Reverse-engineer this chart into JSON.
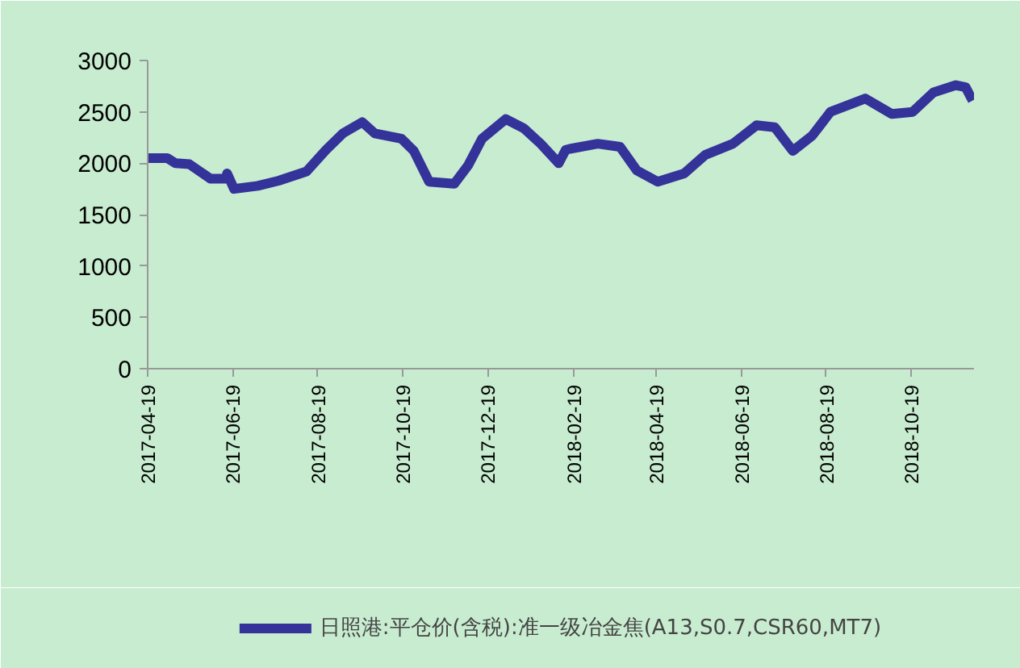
{
  "chart_data": {
    "type": "line",
    "x": [
      "2017-04-19",
      "2017-05-03",
      "2017-05-09",
      "2017-05-19",
      "2017-06-03",
      "2017-06-14",
      "2017-06-15",
      "2017-06-20",
      "2017-07-07",
      "2017-07-22",
      "2017-08-11",
      "2017-08-25",
      "2017-09-06",
      "2017-09-20",
      "2017-09-29",
      "2017-10-18",
      "2017-10-27",
      "2017-11-07",
      "2017-11-25",
      "2017-12-05",
      "2017-12-15",
      "2018-01-01",
      "2018-01-14",
      "2018-01-26",
      "2018-02-08",
      "2018-02-13",
      "2018-02-16",
      "2018-03-08",
      "2018-03-24",
      "2018-04-05",
      "2018-04-20",
      "2018-05-09",
      "2018-05-24",
      "2018-06-13",
      "2018-06-30",
      "2018-07-13",
      "2018-07-26",
      "2018-08-09",
      "2018-08-22",
      "2018-09-16",
      "2018-10-05",
      "2018-10-20",
      "2018-11-04",
      "2018-11-20",
      "2018-11-27",
      "2018-12-02"
    ],
    "series": [
      {
        "name": "日照港:平仓价(含税):准一级冶金焦(A13,S0.7,CSR60,MT7)",
        "color": "#333399",
        "values": [
          2050,
          2050,
          2000,
          1990,
          1850,
          1850,
          1900,
          1750,
          1780,
          1830,
          1920,
          2130,
          2290,
          2400,
          2290,
          2240,
          2120,
          1820,
          1800,
          1980,
          2240,
          2430,
          2340,
          2190,
          2000,
          2130,
          2140,
          2190,
          2160,
          1930,
          1820,
          1900,
          2080,
          2190,
          2370,
          2350,
          2120,
          2270,
          2500,
          2630,
          2480,
          2500,
          2690,
          2760,
          2740,
          2610
        ]
      }
    ],
    "xlim": [
      "2017-04-19",
      "2018-12-03"
    ],
    "xticks": [
      "2017-04-19",
      "2017-06-19",
      "2017-08-19",
      "2017-10-19",
      "2017-12-19",
      "2018-02-19",
      "2018-04-19",
      "2018-06-19",
      "2018-08-19",
      "2018-10-19"
    ],
    "ylim": [
      0,
      3000
    ],
    "yticks": [
      0,
      500,
      1000,
      1500,
      2000,
      2500,
      3000
    ],
    "grid": false,
    "legend": "bottom",
    "marker": "none",
    "line_style": "solid"
  }
}
